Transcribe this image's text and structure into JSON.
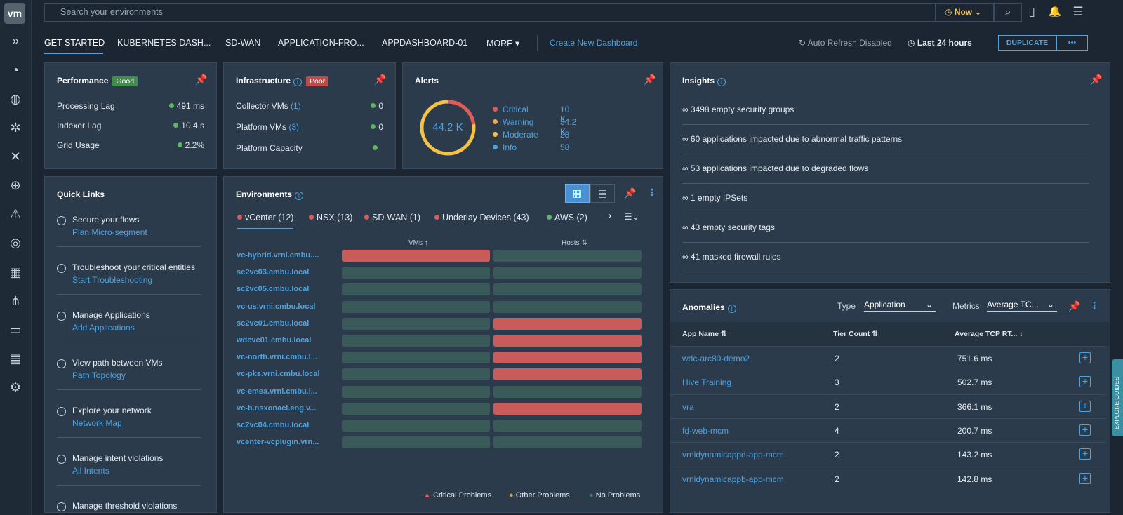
{
  "sidebar": {
    "logo": "vm",
    "icons": [
      {
        "name": "expand-icon",
        "glyph": "»"
      },
      {
        "name": "dashboard-icon",
        "glyph": "◔"
      },
      {
        "name": "discover-icon",
        "glyph": "◍"
      },
      {
        "name": "network-icon",
        "glyph": "✲"
      },
      {
        "name": "tools-icon",
        "glyph": "✕"
      },
      {
        "name": "target-icon",
        "glyph": "⊕"
      },
      {
        "name": "alert-icon",
        "glyph": "⚠"
      },
      {
        "name": "globe-icon",
        "glyph": "◎"
      },
      {
        "name": "analytics-icon",
        "glyph": "▦"
      },
      {
        "name": "topology-icon",
        "glyph": "⋔"
      },
      {
        "name": "monitor-icon",
        "glyph": "▭"
      },
      {
        "name": "report-icon",
        "glyph": "▤"
      },
      {
        "name": "settings-icon",
        "glyph": "⚙"
      }
    ]
  },
  "topbar": {
    "search_placeholder": "Search your environments",
    "now_label": "Now",
    "search_icon": "⌕",
    "bookmark_icon": "▯",
    "bell_icon": "🔔",
    "menu_icon": "☰"
  },
  "tabs": {
    "items": [
      "GET STARTED",
      "KUBERNETES DASH...",
      "SD-WAN",
      "APPLICATION-FRO...",
      "APPDASHBOARD-01",
      "MORE"
    ],
    "create": "Create New Dashboard",
    "auto_refresh": "Auto Refresh Disabled",
    "time_range": "Last 24 hours",
    "duplicate": "DUPLICATE",
    "more_actions": "•••"
  },
  "performance": {
    "title": "Performance",
    "badge": "Good",
    "rows": [
      {
        "label": "Processing Lag",
        "value": "491 ms"
      },
      {
        "label": "Indexer Lag",
        "value": "10.4 s"
      },
      {
        "label": "Grid Usage",
        "value": "2.2%"
      }
    ]
  },
  "infrastructure": {
    "title": "Infrastructure",
    "badge": "Poor",
    "rows": [
      {
        "label": "Collector VMs",
        "count": "(1)",
        "value": "0"
      },
      {
        "label": "Platform VMs",
        "count": "(3)",
        "value": "0"
      },
      {
        "label": "Platform Capacity",
        "count": "",
        "value": ""
      }
    ]
  },
  "alerts": {
    "title": "Alerts",
    "total": "44.2 K",
    "rows": [
      {
        "label": "Critical",
        "value": "10 K",
        "color": "#e05a5a"
      },
      {
        "label": "Warning",
        "value": "34.2 K",
        "color": "#f0a94a"
      },
      {
        "label": "Moderate",
        "value": "28",
        "color": "#f5c242"
      },
      {
        "label": "Info",
        "value": "58",
        "color": "#4fa3e0"
      }
    ]
  },
  "insights": {
    "title": "Insights",
    "rows": [
      "3498 empty security groups",
      "60 applications impacted due to abnormal traffic patterns",
      "53 applications impacted due to degraded flows",
      "1 empty IPSets",
      "43 empty security tags",
      "41 masked firewall rules"
    ]
  },
  "quick_links": {
    "title": "Quick Links",
    "items": [
      {
        "title": "Secure your flows",
        "link": "Plan Micro-segment"
      },
      {
        "title": "Troubleshoot your critical entities",
        "link": "Start Troubleshooting"
      },
      {
        "title": "Manage Applications",
        "link": "Add Applications"
      },
      {
        "title": "View path between VMs",
        "link": "Path Topology"
      },
      {
        "title": "Explore your network",
        "link": "Network Map"
      },
      {
        "title": "Manage intent violations",
        "link": "All Intents"
      },
      {
        "title": "Manage threshold violations",
        "link": ""
      }
    ]
  },
  "environments": {
    "title": "Environments",
    "tabs": [
      {
        "label": "vCenter (12)"
      },
      {
        "label": "NSX (13)"
      },
      {
        "label": "SD-WAN (1)"
      },
      {
        "label": "Underlay Devices (43)"
      },
      {
        "label": "AWS (2)"
      }
    ],
    "col_vms": "VMs ↑",
    "col_hosts": "Hosts ⇅",
    "rows": [
      {
        "name": "vc-hybrid.vrni.cmbu....",
        "vms": "critical",
        "hosts": "ok"
      },
      {
        "name": "sc2vc03.cmbu.local",
        "vms": "ok",
        "hosts": "ok"
      },
      {
        "name": "sc2vc05.cmbu.local",
        "vms": "ok",
        "hosts": "ok"
      },
      {
        "name": "vc-us.vrni.cmbu.local",
        "vms": "ok",
        "hosts": "ok"
      },
      {
        "name": "sc2vc01.cmbu.local",
        "vms": "ok",
        "hosts": "critical"
      },
      {
        "name": "wdcvc01.cmbu.local",
        "vms": "ok",
        "hosts": "critical"
      },
      {
        "name": "vc-north.vrni.cmbu.l...",
        "vms": "ok",
        "hosts": "critical"
      },
      {
        "name": "vc-pks.vrni.cmbu.local",
        "vms": "ok",
        "hosts": "critical"
      },
      {
        "name": "vc-emea.vrni.cmbu.l...",
        "vms": "ok",
        "hosts": "ok"
      },
      {
        "name": "vc-b.nsxonaci.eng.v...",
        "vms": "ok",
        "hosts": "critical"
      },
      {
        "name": "sc2vc04.cmbu.local",
        "vms": "ok",
        "hosts": "ok"
      },
      {
        "name": "vcenter-vcplugin.vrn...",
        "vms": "ok",
        "hosts": "ok"
      }
    ],
    "legend": [
      "Critical Problems",
      "Other Problems",
      "No Problems"
    ]
  },
  "anomalies": {
    "title": "Anomalies",
    "type_label": "Type",
    "type_value": "Application",
    "metrics_label": "Metrics",
    "metrics_value": "Average TC...",
    "columns": [
      "App Name ⇅",
      "Tier Count ⇅",
      "Average TCP RT... ↓"
    ],
    "rows": [
      {
        "app": "wdc-arc80-demo2",
        "tier": "2",
        "rtt": "751.6 ms"
      },
      {
        "app": "Hive Training",
        "tier": "3",
        "rtt": "502.7 ms"
      },
      {
        "app": "vra",
        "tier": "2",
        "rtt": "366.1 ms"
      },
      {
        "app": "fd-web-mcm",
        "tier": "4",
        "rtt": "200.7 ms"
      },
      {
        "app": "vrnidynamicappd-app-mcm",
        "tier": "2",
        "rtt": "143.2 ms"
      },
      {
        "app": "vrnidynamicappb-app-mcm",
        "tier": "2",
        "rtt": "142.8 ms"
      }
    ]
  },
  "explore_guides": "EXPLORE GUIDES",
  "colors": {
    "good": "#3f8f4a",
    "poor": "#c44a4a",
    "critical_bar": "#c95b5b",
    "ok_bar": "#3a5a5a",
    "accent": "#4fa3e0"
  }
}
